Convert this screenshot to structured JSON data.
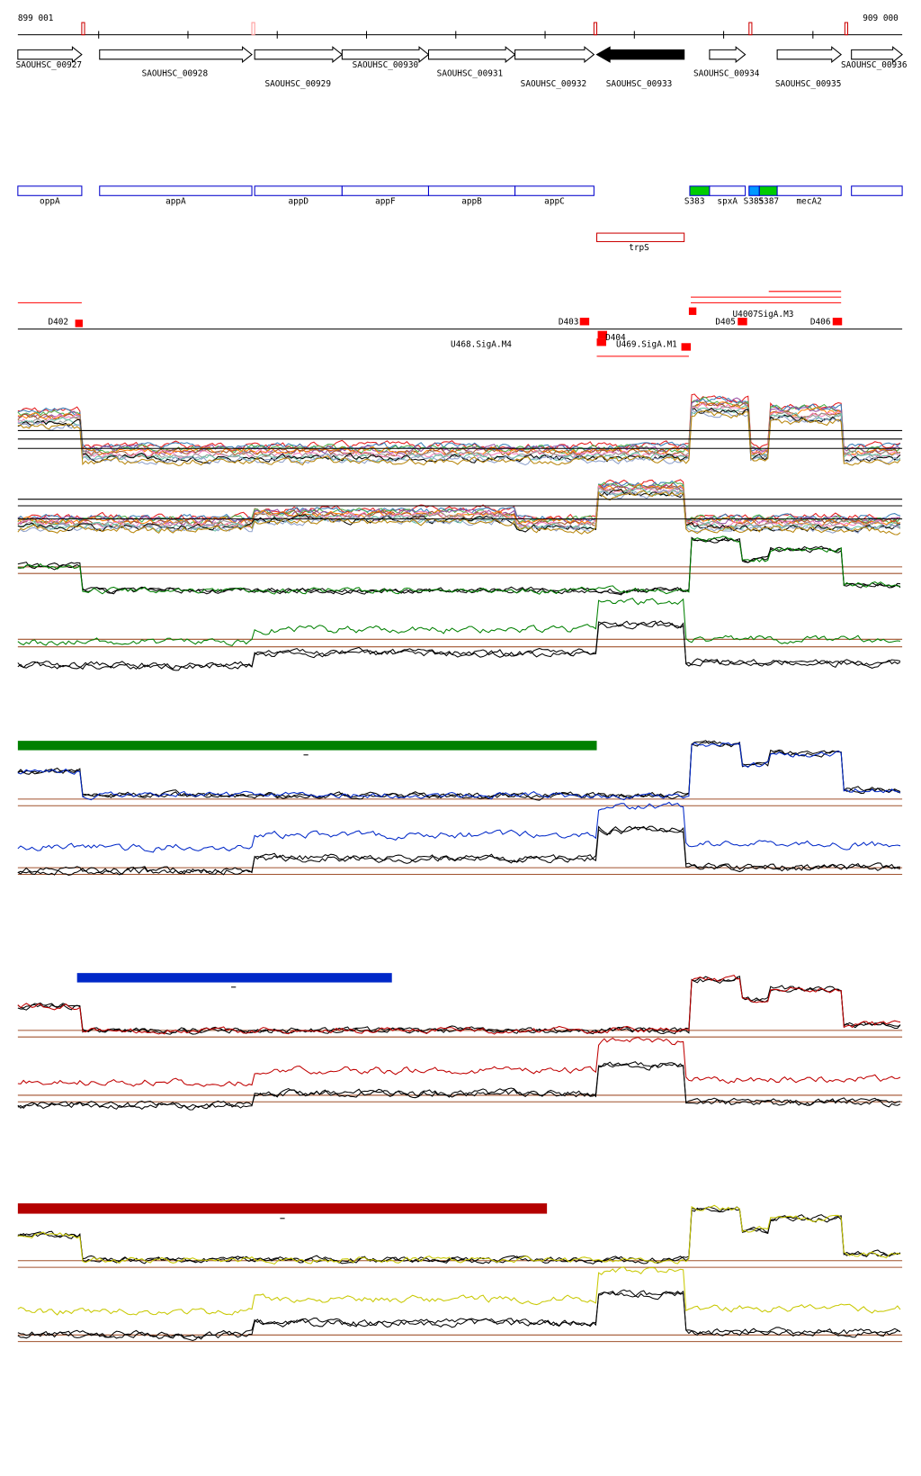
{
  "ruler": {
    "start": "899 001",
    "end": "909 000"
  },
  "genes": [
    "SAOUHSC_00927",
    "SAOUHSC_00928",
    "SAOUHSC_00929",
    "SAOUHSC_00930",
    "SAOUHSC_00931",
    "SAOUHSC_00932",
    "SAOUHSC_00933",
    "SAOUHSC_00934",
    "SAOUHSC_00935",
    "SAOUHSC_00936"
  ],
  "gene_names": [
    "oppA",
    "appA",
    "appD",
    "appF",
    "appB",
    "appC",
    "S383",
    "spxA",
    "S385",
    "S387",
    "mecA2"
  ],
  "antisense": "trpS",
  "features": [
    "D402",
    "D403",
    "D404",
    "D405",
    "D406",
    "U468.SigA.M4",
    "U469.SigA.M1",
    "U4007SigA.M3"
  ]
}
